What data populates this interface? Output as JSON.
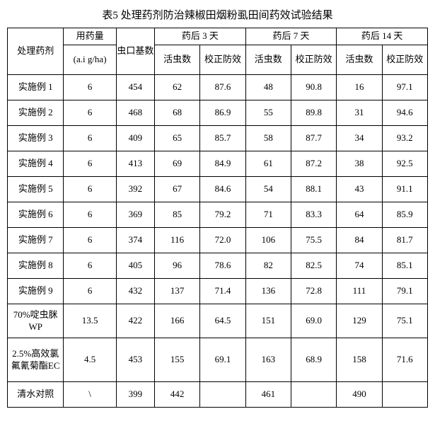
{
  "title": "表5 处理药剂防治辣椒田烟粉虱田间药效试验结果",
  "headers": {
    "name": "处理药剂",
    "dose": "用药量",
    "dose_unit": "(a.i g/ha)",
    "base": "虫口基数",
    "d3": "药后 3 天",
    "d7": "药后 7 天",
    "d14": "药后 14 天",
    "live": "活虫数",
    "corr": "校正防效"
  },
  "rows": [
    {
      "name": "实施例 1",
      "dose": "6",
      "base": "454",
      "d3a": "62",
      "d3b": "87.6",
      "d7a": "48",
      "d7b": "90.8",
      "d14a": "16",
      "d14b": "97.1"
    },
    {
      "name": "实施例 2",
      "dose": "6",
      "base": "468",
      "d3a": "68",
      "d3b": "86.9",
      "d7a": "55",
      "d7b": "89.8",
      "d14a": "31",
      "d14b": "94.6"
    },
    {
      "name": "实施例 3",
      "dose": "6",
      "base": "409",
      "d3a": "65",
      "d3b": "85.7",
      "d7a": "58",
      "d7b": "87.7",
      "d14a": "34",
      "d14b": "93.2"
    },
    {
      "name": "实施例 4",
      "dose": "6",
      "base": "413",
      "d3a": "69",
      "d3b": "84.9",
      "d7a": "61",
      "d7b": "87.2",
      "d14a": "38",
      "d14b": "92.5"
    },
    {
      "name": "实施例 5",
      "dose": "6",
      "base": "392",
      "d3a": "67",
      "d3b": "84.6",
      "d7a": "54",
      "d7b": "88.1",
      "d14a": "43",
      "d14b": "91.1"
    },
    {
      "name": "实施例 6",
      "dose": "6",
      "base": "369",
      "d3a": "85",
      "d3b": "79.2",
      "d7a": "71",
      "d7b": "83.3",
      "d14a": "64",
      "d14b": "85.9"
    },
    {
      "name": "实施例 7",
      "dose": "6",
      "base": "374",
      "d3a": "116",
      "d3b": "72.0",
      "d7a": "106",
      "d7b": "75.5",
      "d14a": "84",
      "d14b": "81.7"
    },
    {
      "name": "实施例 8",
      "dose": "6",
      "base": "405",
      "d3a": "96",
      "d3b": "78.6",
      "d7a": "82",
      "d7b": "82.5",
      "d14a": "74",
      "d14b": "85.1"
    },
    {
      "name": "实施例 9",
      "dose": "6",
      "base": "432",
      "d3a": "137",
      "d3b": "71.4",
      "d7a": "136",
      "d7b": "72.8",
      "d14a": "111",
      "d14b": "79.1"
    },
    {
      "name": "70%啶虫脒WP",
      "dose": "13.5",
      "base": "422",
      "d3a": "166",
      "d3b": "64.5",
      "d7a": "151",
      "d7b": "69.0",
      "d14a": "129",
      "d14b": "75.1",
      "tall": true
    },
    {
      "name": "2.5%高效氯氟氰菊酯EC",
      "dose": "4.5",
      "base": "453",
      "d3a": "155",
      "d3b": "69.1",
      "d7a": "163",
      "d7b": "68.9",
      "d14a": "158",
      "d14b": "71.6",
      "tall2": true
    },
    {
      "name": "清水对照",
      "dose": "\\",
      "base": "399",
      "d3a": "442",
      "d3b": "",
      "d7a": "461",
      "d7b": "",
      "d14a": "490",
      "d14b": ""
    }
  ]
}
